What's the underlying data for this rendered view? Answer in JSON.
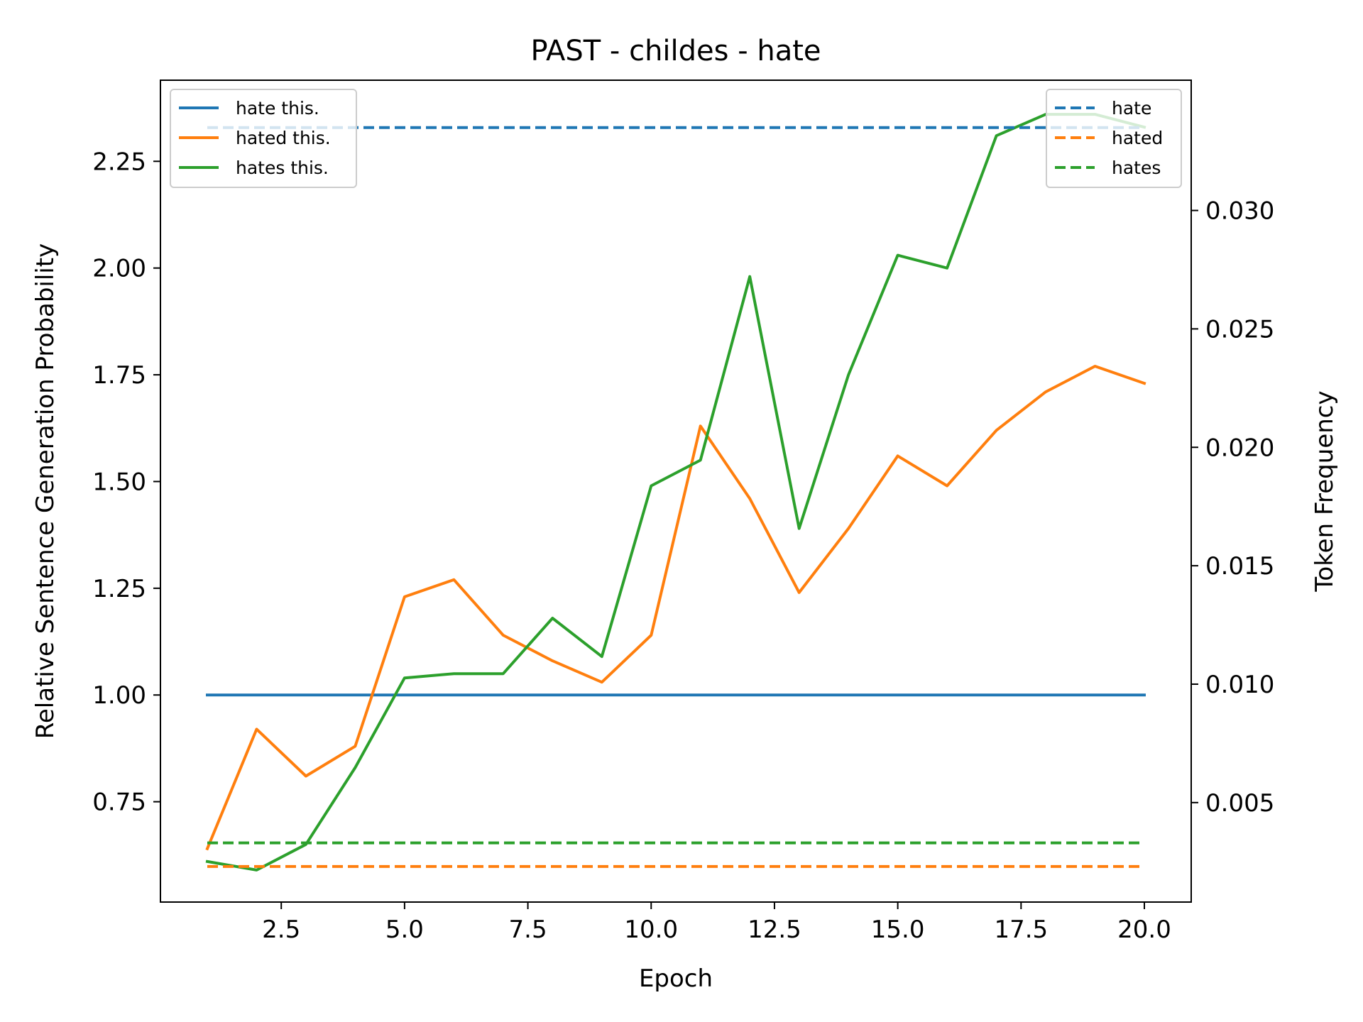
{
  "chart_data": {
    "type": "line",
    "title": "PAST - childes - hate",
    "xlabel": "Epoch",
    "ylabel": "Relative Sentence Generation Probability",
    "y2label": "Token Frequency",
    "xlim": [
      0.05,
      20.95
    ],
    "ylim": [
      0.515,
      2.44
    ],
    "y2lim": [
      0.0008,
      0.0355
    ],
    "xticks": [
      2.5,
      5.0,
      7.5,
      10.0,
      12.5,
      15.0,
      17.5,
      20.0
    ],
    "xtick_labels": [
      "2.5",
      "5.0",
      "7.5",
      "10.0",
      "12.5",
      "15.0",
      "17.5",
      "20.0"
    ],
    "yticks": [
      0.75,
      1.0,
      1.25,
      1.5,
      1.75,
      2.0,
      2.25
    ],
    "ytick_labels": [
      "0.75",
      "1.00",
      "1.25",
      "1.50",
      "1.75",
      "2.00",
      "2.25"
    ],
    "y2ticks": [
      0.005,
      0.01,
      0.015,
      0.02,
      0.025,
      0.03
    ],
    "y2tick_labels": [
      "0.005",
      "0.010",
      "0.015",
      "0.020",
      "0.025",
      "0.030"
    ],
    "grid": false,
    "x": [
      1,
      2,
      3,
      4,
      5,
      6,
      7,
      8,
      9,
      10,
      11,
      12,
      13,
      14,
      15,
      16,
      17,
      18,
      19,
      20
    ],
    "series": [
      {
        "name": "hate this.",
        "axis": "left",
        "style": "solid",
        "color": "#1f77b4",
        "values": [
          1.0,
          1.0,
          1.0,
          1.0,
          1.0,
          1.0,
          1.0,
          1.0,
          1.0,
          1.0,
          1.0,
          1.0,
          1.0,
          1.0,
          1.0,
          1.0,
          1.0,
          1.0,
          1.0,
          1.0
        ]
      },
      {
        "name": "hated this.",
        "axis": "left",
        "style": "solid",
        "color": "#ff7f0e",
        "values": [
          0.64,
          0.92,
          0.81,
          0.88,
          1.23,
          1.27,
          1.14,
          1.08,
          1.03,
          1.14,
          1.63,
          1.46,
          1.24,
          1.39,
          1.56,
          1.49,
          1.62,
          1.71,
          1.77,
          1.73
        ]
      },
      {
        "name": "hates this.",
        "axis": "left",
        "style": "solid",
        "color": "#2ca02c",
        "values": [
          0.61,
          0.59,
          0.65,
          0.83,
          1.04,
          1.05,
          1.05,
          1.18,
          1.09,
          1.49,
          1.55,
          1.98,
          1.39,
          1.75,
          2.03,
          2.0,
          2.31,
          2.36,
          2.36,
          2.33
        ]
      },
      {
        "name": "hate",
        "axis": "right",
        "style": "dashed",
        "color": "#1f77b4",
        "values": [
          0.0335,
          0.0335,
          0.0335,
          0.0335,
          0.0335,
          0.0335,
          0.0335,
          0.0335,
          0.0335,
          0.0335,
          0.0335,
          0.0335,
          0.0335,
          0.0335,
          0.0335,
          0.0335,
          0.0335,
          0.0335,
          0.0335,
          0.0335
        ]
      },
      {
        "name": "hated",
        "axis": "right",
        "style": "dashed",
        "color": "#ff7f0e",
        "values": [
          0.0023,
          0.0023,
          0.0023,
          0.0023,
          0.0023,
          0.0023,
          0.0023,
          0.0023,
          0.0023,
          0.0023,
          0.0023,
          0.0023,
          0.0023,
          0.0023,
          0.0023,
          0.0023,
          0.0023,
          0.0023,
          0.0023,
          0.0023
        ]
      },
      {
        "name": "hates",
        "axis": "right",
        "style": "dashed",
        "color": "#2ca02c",
        "values": [
          0.0033,
          0.0033,
          0.0033,
          0.0033,
          0.0033,
          0.0033,
          0.0033,
          0.0033,
          0.0033,
          0.0033,
          0.0033,
          0.0033,
          0.0033,
          0.0033,
          0.0033,
          0.0033,
          0.0033,
          0.0033,
          0.0033,
          0.0033
        ]
      }
    ],
    "legends": [
      {
        "placement": "upper-left",
        "entries": [
          "hate this.",
          "hated this.",
          "hates this."
        ]
      },
      {
        "placement": "upper-right",
        "entries": [
          "hate",
          "hated",
          "hates"
        ]
      }
    ]
  }
}
